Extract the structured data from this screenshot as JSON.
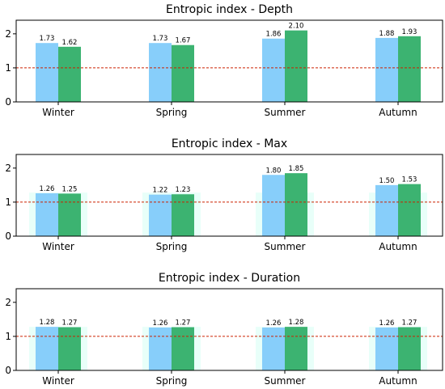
{
  "colors": {
    "series_a": "#87cefa",
    "series_b": "#3cb371",
    "reference_line": "#cc2200",
    "glow": "#ccfff2",
    "axis": "#000000"
  },
  "chart_data": [
    {
      "type": "bar",
      "title": "Entropic index - Depth",
      "categories": [
        "Winter",
        "Spring",
        "Summer",
        "Autumn"
      ],
      "series": [
        {
          "values": [
            1.73,
            1.73,
            1.86,
            1.88
          ],
          "labels": [
            "1.73",
            "1.73",
            "1.86",
            "1.88"
          ]
        },
        {
          "values": [
            1.62,
            1.67,
            2.1,
            1.93
          ],
          "labels": [
            "1.62",
            "1.67",
            "2.10",
            "1.93"
          ]
        }
      ],
      "ylim": [
        0,
        2.4
      ],
      "yticks": [
        "0",
        "1",
        "2"
      ],
      "reference_line": {
        "y": 1,
        "style": "dashed"
      },
      "glow": false,
      "grid": false
    },
    {
      "type": "bar",
      "title": "Entropic index - Max",
      "categories": [
        "Winter",
        "Spring",
        "Summer",
        "Autumn"
      ],
      "series": [
        {
          "values": [
            1.26,
            1.22,
            1.8,
            1.5
          ],
          "labels": [
            "1.26",
            "1.22",
            "1.80",
            "1.50"
          ]
        },
        {
          "values": [
            1.25,
            1.23,
            1.85,
            1.53
          ],
          "labels": [
            "1.25",
            "1.23",
            "1.85",
            "1.53"
          ]
        }
      ],
      "ylim": [
        0,
        2.4
      ],
      "yticks": [
        "0",
        "1",
        "2"
      ],
      "reference_line": {
        "y": 1,
        "style": "dashed"
      },
      "glow": true,
      "grid": false
    },
    {
      "type": "bar",
      "title": "Entropic index - Duration",
      "categories": [
        "Winter",
        "Spring",
        "Summer",
        "Autumn"
      ],
      "series": [
        {
          "values": [
            1.28,
            1.26,
            1.26,
            1.26
          ],
          "labels": [
            "1.28",
            "1.26",
            "1.26",
            "1.26"
          ]
        },
        {
          "values": [
            1.27,
            1.27,
            1.28,
            1.27
          ],
          "labels": [
            "1.27",
            "1.27",
            "1.28",
            "1.27"
          ]
        }
      ],
      "ylim": [
        0,
        2.4
      ],
      "yticks": [
        "0",
        "1",
        "2"
      ],
      "reference_line": {
        "y": 1,
        "style": "dashed"
      },
      "glow": true,
      "grid": false
    }
  ]
}
